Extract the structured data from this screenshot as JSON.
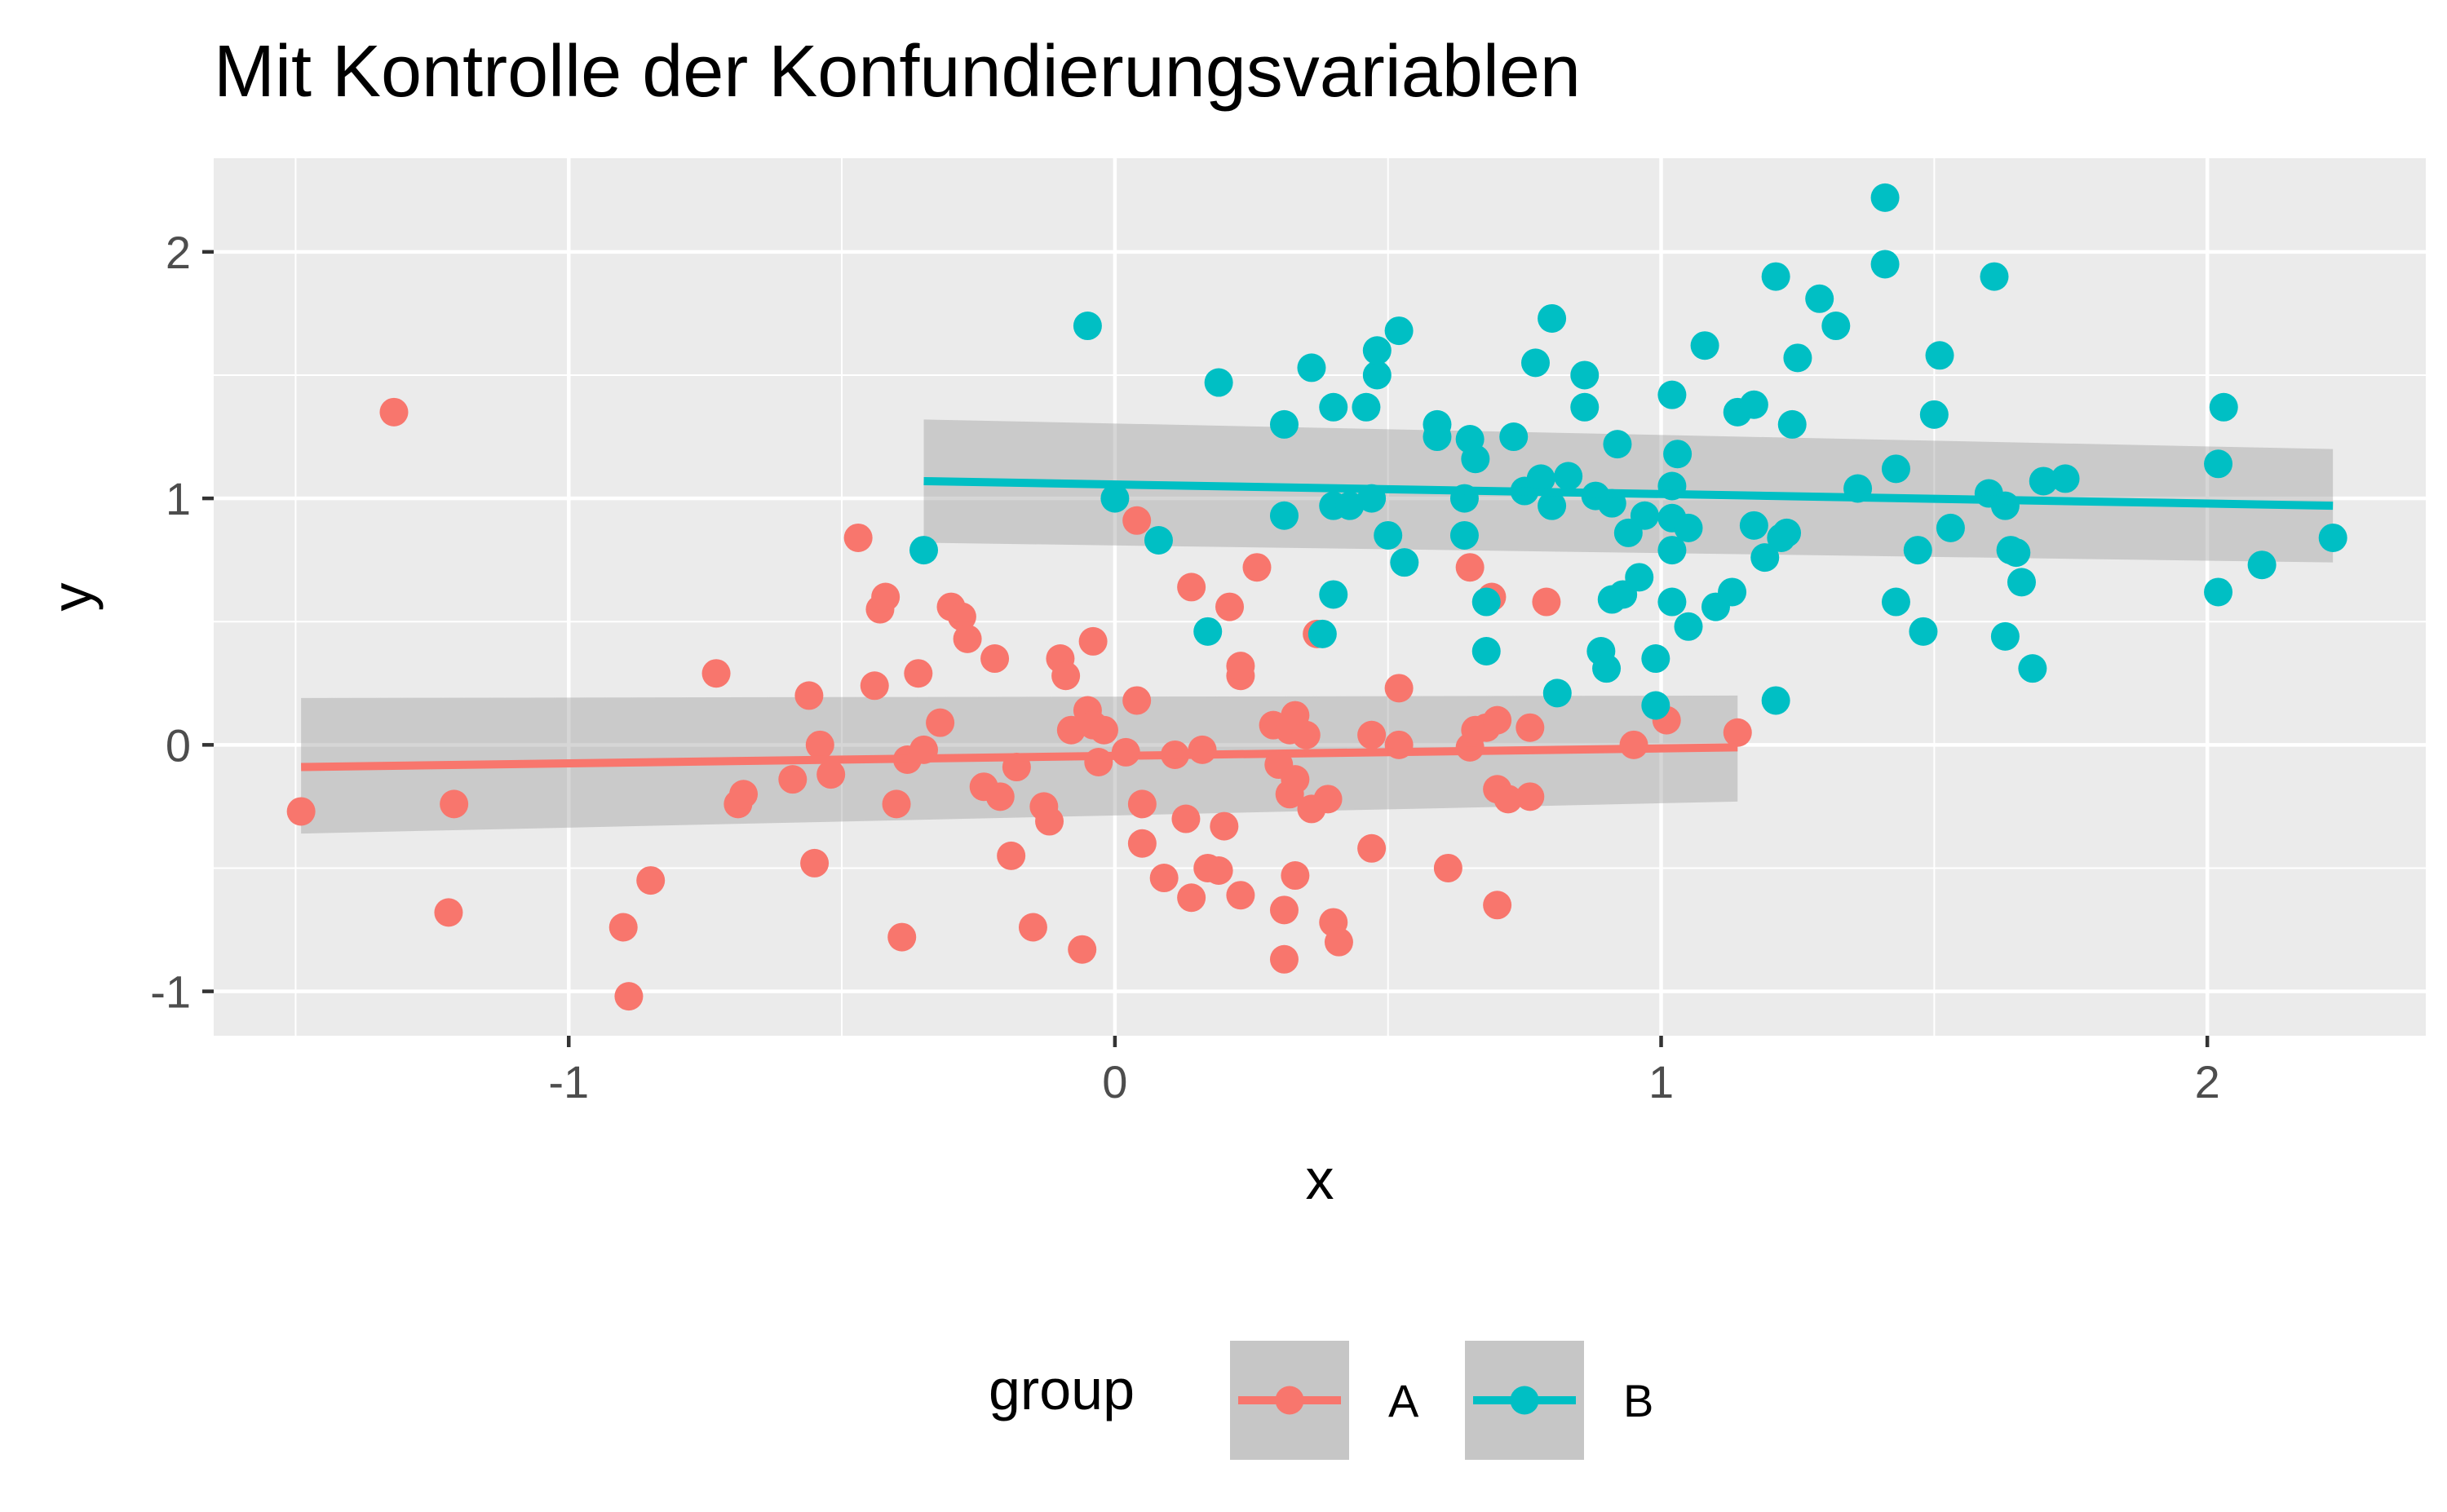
{
  "chart_data": {
    "type": "scatter",
    "title": "Mit Kontrolle der Konfundierungsvariablen",
    "xlabel": "x",
    "ylabel": "y",
    "xlim": [
      -1.65,
      2.4
    ],
    "ylim": [
      -1.18,
      2.38
    ],
    "x_ticks": [
      -1,
      0,
      1,
      2
    ],
    "x_tick_labels": [
      "-1",
      "0",
      "1",
      "2"
    ],
    "y_ticks": [
      -1,
      0,
      1,
      2
    ],
    "y_tick_labels": [
      "-1",
      "0",
      "1",
      "2"
    ],
    "grid": true,
    "legend": {
      "title": "group",
      "position": "bottom"
    },
    "series": [
      {
        "name": "A",
        "color": "#F8766D",
        "points": [
          [
            -1.49,
            -0.27
          ],
          [
            -1.32,
            1.35
          ],
          [
            -1.21,
            -0.24
          ],
          [
            -1.22,
            -0.68
          ],
          [
            -0.9,
            -0.74
          ],
          [
            -0.89,
            -1.02
          ],
          [
            -0.85,
            -0.55
          ],
          [
            -0.73,
            0.29
          ],
          [
            -0.69,
            -0.24
          ],
          [
            -0.68,
            -0.2
          ],
          [
            -0.59,
            -0.14
          ],
          [
            -0.56,
            0.2
          ],
          [
            -0.55,
            -0.48
          ],
          [
            -0.54,
            0.0
          ],
          [
            -0.52,
            -0.12
          ],
          [
            -0.47,
            0.84
          ],
          [
            -0.44,
            0.24
          ],
          [
            -0.43,
            0.55
          ],
          [
            -0.42,
            0.6
          ],
          [
            -0.4,
            -0.24
          ],
          [
            -0.39,
            -0.78
          ],
          [
            -0.38,
            -0.06
          ],
          [
            -0.36,
            0.29
          ],
          [
            -0.35,
            -0.02
          ],
          [
            -0.32,
            0.09
          ],
          [
            -0.3,
            0.56
          ],
          [
            -0.28,
            0.52
          ],
          [
            -0.27,
            0.43
          ],
          [
            -0.24,
            -0.17
          ],
          [
            -0.22,
            0.35
          ],
          [
            -0.21,
            -0.21
          ],
          [
            -0.19,
            -0.45
          ],
          [
            -0.18,
            -0.09
          ],
          [
            -0.15,
            -0.74
          ],
          [
            -0.13,
            -0.25
          ],
          [
            -0.12,
            -0.31
          ],
          [
            -0.1,
            0.35
          ],
          [
            -0.09,
            0.28
          ],
          [
            -0.08,
            0.06
          ],
          [
            -0.06,
            -0.83
          ],
          [
            -0.05,
            0.14
          ],
          [
            -0.04,
            0.08
          ],
          [
            -0.03,
            -0.07
          ],
          [
            -0.04,
            0.42
          ],
          [
            -0.02,
            0.06
          ],
          [
            0.02,
            -0.03
          ],
          [
            0.04,
            0.91
          ],
          [
            0.04,
            0.18
          ],
          [
            0.05,
            -0.24
          ],
          [
            0.05,
            -0.4
          ],
          [
            0.09,
            -0.54
          ],
          [
            0.11,
            -0.04
          ],
          [
            0.13,
            -0.3
          ],
          [
            0.14,
            -0.62
          ],
          [
            0.14,
            0.64
          ],
          [
            0.16,
            -0.02
          ],
          [
            0.17,
            -0.5
          ],
          [
            0.19,
            -0.51
          ],
          [
            0.2,
            -0.33
          ],
          [
            0.21,
            0.56
          ],
          [
            0.23,
            0.28
          ],
          [
            0.23,
            0.32
          ],
          [
            0.23,
            -0.61
          ],
          [
            0.26,
            0.72
          ],
          [
            0.29,
            0.08
          ],
          [
            0.3,
            -0.08
          ],
          [
            0.31,
            -0.67
          ],
          [
            0.31,
            -0.87
          ],
          [
            0.32,
            -0.2
          ],
          [
            0.32,
            0.06
          ],
          [
            0.33,
            -0.14
          ],
          [
            0.33,
            0.12
          ],
          [
            0.33,
            -0.53
          ],
          [
            0.35,
            0.04
          ],
          [
            0.36,
            -0.26
          ],
          [
            0.37,
            0.45
          ],
          [
            0.39,
            -0.22
          ],
          [
            0.4,
            -0.72
          ],
          [
            0.41,
            -0.8
          ],
          [
            0.47,
            0.04
          ],
          [
            0.47,
            -0.42
          ],
          [
            0.52,
            0.0
          ],
          [
            0.52,
            0.23
          ],
          [
            0.61,
            -0.5
          ],
          [
            0.65,
            0.72
          ],
          [
            0.65,
            -0.01
          ],
          [
            0.66,
            0.06
          ],
          [
            0.68,
            0.07
          ],
          [
            0.69,
            0.6
          ],
          [
            0.7,
            0.1
          ],
          [
            0.7,
            -0.65
          ],
          [
            0.7,
            -0.18
          ],
          [
            0.72,
            -0.22
          ],
          [
            0.76,
            0.07
          ],
          [
            0.76,
            -0.21
          ],
          [
            0.79,
            0.58
          ],
          [
            0.95,
            0.0
          ],
          [
            1.01,
            0.1
          ],
          [
            1.14,
            0.05
          ]
        ],
        "fit": {
          "x": [
            -1.49,
            1.14
          ],
          "y": [
            -0.09,
            -0.01
          ],
          "se_lower": [
            -0.36,
            -0.23
          ],
          "se_upper": [
            0.19,
            0.2
          ]
        }
      },
      {
        "name": "B",
        "color": "#00BFC4",
        "points": [
          [
            -0.35,
            0.79
          ],
          [
            -0.05,
            1.7
          ],
          [
            0.0,
            1.0
          ],
          [
            0.08,
            0.83
          ],
          [
            0.17,
            0.46
          ],
          [
            0.19,
            1.47
          ],
          [
            0.31,
            1.3
          ],
          [
            0.31,
            0.93
          ],
          [
            0.36,
            1.53
          ],
          [
            0.38,
            0.45
          ],
          [
            0.4,
            1.37
          ],
          [
            0.4,
            0.97
          ],
          [
            0.4,
            0.61
          ],
          [
            0.43,
            0.97
          ],
          [
            0.46,
            1.37
          ],
          [
            0.47,
            1.0
          ],
          [
            0.48,
            1.5
          ],
          [
            0.48,
            1.6
          ],
          [
            0.5,
            0.85
          ],
          [
            0.52,
            1.68
          ],
          [
            0.53,
            0.74
          ],
          [
            0.59,
            1.3
          ],
          [
            0.59,
            1.25
          ],
          [
            0.64,
            1.0
          ],
          [
            0.64,
            0.85
          ],
          [
            0.65,
            1.24
          ],
          [
            0.66,
            1.16
          ],
          [
            0.68,
            0.58
          ],
          [
            0.68,
            0.38
          ],
          [
            0.73,
            1.25
          ],
          [
            0.75,
            1.03
          ],
          [
            0.77,
            1.55
          ],
          [
            0.78,
            1.08
          ],
          [
            0.8,
            0.97
          ],
          [
            0.8,
            1.73
          ],
          [
            0.81,
            0.21
          ],
          [
            0.83,
            1.09
          ],
          [
            0.86,
            1.37
          ],
          [
            0.86,
            1.5
          ],
          [
            0.88,
            1.01
          ],
          [
            0.89,
            0.38
          ],
          [
            0.9,
            0.31
          ],
          [
            0.91,
            0.98
          ],
          [
            0.91,
            0.59
          ],
          [
            0.92,
            1.22
          ],
          [
            0.93,
            0.61
          ],
          [
            0.94,
            0.86
          ],
          [
            0.96,
            0.68
          ],
          [
            0.97,
            0.93
          ],
          [
            0.99,
            0.35
          ],
          [
            0.99,
            0.16
          ],
          [
            1.02,
            0.79
          ],
          [
            1.02,
            1.42
          ],
          [
            1.02,
            0.92
          ],
          [
            1.02,
            0.58
          ],
          [
            1.02,
            1.05
          ],
          [
            1.03,
            1.18
          ],
          [
            1.05,
            0.88
          ],
          [
            1.05,
            0.48
          ],
          [
            1.08,
            1.62
          ],
          [
            1.1,
            0.56
          ],
          [
            1.13,
            0.62
          ],
          [
            1.14,
            1.35
          ],
          [
            1.17,
            1.38
          ],
          [
            1.17,
            0.89
          ],
          [
            1.19,
            0.76
          ],
          [
            1.21,
            1.9
          ],
          [
            1.21,
            0.18
          ],
          [
            1.22,
            0.84
          ],
          [
            1.23,
            0.86
          ],
          [
            1.24,
            1.3
          ],
          [
            1.25,
            1.57
          ],
          [
            1.29,
            1.81
          ],
          [
            1.32,
            1.7
          ],
          [
            1.36,
            1.04
          ],
          [
            1.41,
            1.95
          ],
          [
            1.41,
            2.22
          ],
          [
            1.43,
            0.58
          ],
          [
            1.43,
            1.12
          ],
          [
            1.47,
            0.79
          ],
          [
            1.48,
            0.46
          ],
          [
            1.5,
            1.34
          ],
          [
            1.51,
            1.58
          ],
          [
            1.53,
            0.88
          ],
          [
            1.6,
            1.02
          ],
          [
            1.61,
            1.9
          ],
          [
            1.63,
            0.97
          ],
          [
            1.63,
            0.44
          ],
          [
            1.64,
            0.79
          ],
          [
            1.65,
            0.78
          ],
          [
            1.66,
            0.66
          ],
          [
            1.68,
            0.31
          ],
          [
            1.7,
            1.07
          ],
          [
            1.74,
            1.08
          ],
          [
            2.02,
            0.62
          ],
          [
            2.02,
            1.14
          ],
          [
            2.03,
            1.37
          ],
          [
            2.1,
            0.73
          ],
          [
            2.23,
            0.84
          ]
        ],
        "fit": {
          "x": [
            -0.35,
            2.23
          ],
          "y": [
            1.07,
            0.97
          ],
          "se_lower": [
            0.82,
            0.74
          ],
          "se_upper": [
            1.32,
            1.2
          ]
        }
      }
    ]
  }
}
